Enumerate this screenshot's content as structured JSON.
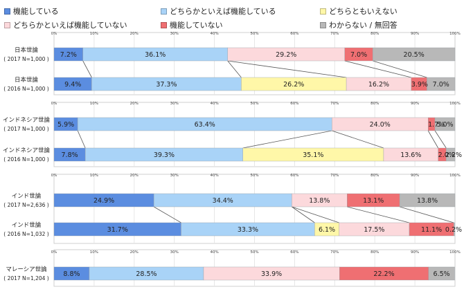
{
  "chart_data": {
    "type": "bar",
    "orientation": "horizontal",
    "stacked": true,
    "percent": true,
    "xlim": [
      0,
      100
    ],
    "legend": [
      "機能している",
      "どちらかといえば機能している",
      "どちらともいえない",
      "どちらかといえば機能していない",
      "機能していない",
      "わからない / 無回答"
    ],
    "colors": [
      "#5b8de0",
      "#a9d3f7",
      "#fff7a8",
      "#fcd9dc",
      "#ef6f72",
      "#b8b8b8"
    ],
    "ticks": [
      "0%",
      "10%",
      "20%",
      "30%",
      "40%",
      "50%",
      "60%",
      "70%",
      "80%",
      "90%",
      "100%"
    ],
    "categories": [
      {
        "title": "日本世論",
        "sub": "( 2017 N=1,000 )",
        "values": [
          7.2,
          36.1,
          0,
          29.2,
          7.0,
          20.5
        ],
        "labels": [
          "7.2%",
          "36.1%",
          "",
          "29.2%",
          "7.0%",
          "20.5%"
        ]
      },
      {
        "title": "日本世論",
        "sub": "( 2016 N=1,000 )",
        "values": [
          9.4,
          37.3,
          26.2,
          16.2,
          3.9,
          7.0
        ],
        "labels": [
          "9.4%",
          "37.3%",
          "26.2%",
          "16.2%",
          "3.9%",
          "7.0%"
        ]
      },
      {
        "title": "インドネシア世論",
        "sub": "( 2017 N=1,000 )",
        "values": [
          5.9,
          63.4,
          0,
          24.0,
          1.7,
          5.0
        ],
        "labels": [
          "5.9%",
          "63.4%",
          "",
          "24.0%",
          "1.7%",
          "5.0%"
        ]
      },
      {
        "title": "インドネシア世論",
        "sub": "( 2016 N=1,000 )",
        "values": [
          7.8,
          39.3,
          35.1,
          13.6,
          2.0,
          2.2
        ],
        "labels": [
          "7.8%",
          "39.3%",
          "35.1%",
          "13.6%",
          "2.0%",
          "2.2%"
        ]
      },
      {
        "title": "インド世論",
        "sub": "( 2017 N=2,636 )",
        "values": [
          24.9,
          34.4,
          0,
          13.8,
          13.1,
          13.8
        ],
        "labels": [
          "24.9%",
          "34.4%",
          "",
          "13.8%",
          "13.1%",
          "13.8%"
        ]
      },
      {
        "title": "インド世論",
        "sub": "( 2016 N=1,032 )",
        "values": [
          31.7,
          33.3,
          6.1,
          17.5,
          11.1,
          0.2
        ],
        "labels": [
          "31.7%",
          "33.3%",
          "6.1%",
          "17.5%",
          "11.1%",
          "0.2%"
        ]
      },
      {
        "title": "マレーシア世論",
        "sub": "( 2017 N=1,204 )",
        "values": [
          8.8,
          28.5,
          0,
          33.9,
          22.2,
          6.5
        ],
        "labels": [
          "8.8%",
          "28.5%",
          "",
          "33.9%",
          "22.2%",
          "6.5%"
        ]
      }
    ]
  }
}
